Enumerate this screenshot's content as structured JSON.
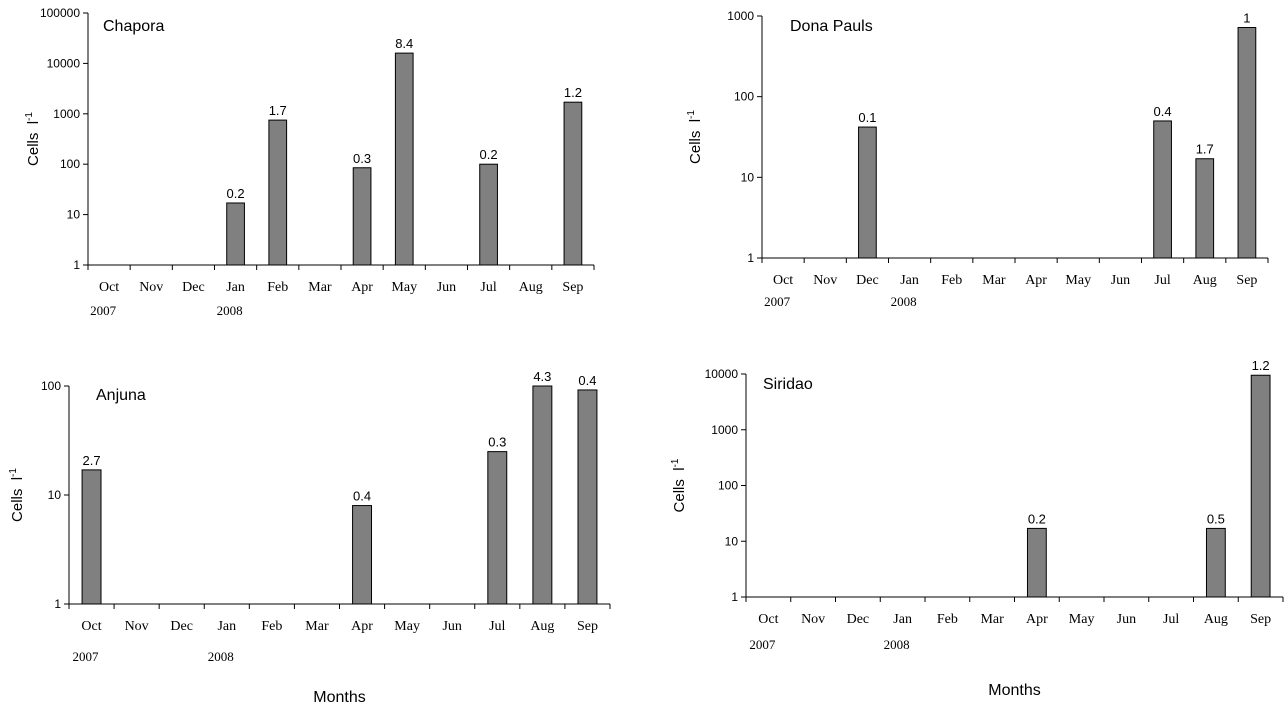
{
  "chart_data": [
    {
      "type": "bar",
      "title": "Chapora",
      "ylabel": "Cells",
      "yscale": "log",
      "ylim": [
        1,
        100000
      ],
      "yticks": [
        "1",
        "10",
        "100",
        "1000",
        "10000",
        "100000"
      ],
      "categories": [
        "Oct",
        "Nov",
        "Dec",
        "Jan",
        "Feb",
        "Mar",
        "Apr",
        "May",
        "Jun",
        "Jul",
        "Aug",
        "Sep"
      ],
      "year_labels": [
        "2007",
        "",
        "",
        "2008",
        "",
        "",
        "",
        "",
        "",
        "",
        "",
        ""
      ],
      "values": [
        null,
        null,
        null,
        17,
        750,
        null,
        85,
        16000,
        null,
        100,
        null,
        1700
      ],
      "data_labels": [
        "",
        "",
        "",
        "0.2",
        "1.7",
        "",
        "0.3",
        "8.4",
        "",
        "0.2",
        "",
        "1.2"
      ],
      "xlabel": "",
      "bar_color": "#808080"
    },
    {
      "type": "bar",
      "title": "Dona Pauls",
      "ylabel": "Cells",
      "yscale": "log",
      "ylim": [
        1,
        1000
      ],
      "yticks": [
        "1",
        "10",
        "100",
        "1000"
      ],
      "categories": [
        "Oct",
        "Nov",
        "Dec",
        "Jan",
        "Feb",
        "Mar",
        "Apr",
        "May",
        "Jun",
        "Jul",
        "Aug",
        "Sep"
      ],
      "year_labels": [
        "2007",
        "",
        "",
        "2008",
        "",
        "",
        "",
        "",
        "",
        "",
        "",
        ""
      ],
      "values": [
        null,
        null,
        42,
        null,
        null,
        null,
        null,
        null,
        null,
        50,
        17,
        720
      ],
      "data_labels": [
        "",
        "",
        "0.1",
        "",
        "",
        "",
        "",
        "",
        "",
        "0.4",
        "1.7",
        "1"
      ],
      "xlabel": "",
      "bar_color": "#808080"
    },
    {
      "type": "bar",
      "title": "Anjuna",
      "ylabel": "Cells",
      "yscale": "log",
      "ylim": [
        1,
        100
      ],
      "yticks": [
        "1",
        "10",
        "100"
      ],
      "categories": [
        "Oct",
        "Nov",
        "Dec",
        "Jan",
        "Feb",
        "Mar",
        "Apr",
        "May",
        "Jun",
        "Jul",
        "Aug",
        "Sep"
      ],
      "year_labels": [
        "2007",
        "",
        "",
        "2008",
        "",
        "",
        "",
        "",
        "",
        "",
        "",
        ""
      ],
      "values": [
        17,
        null,
        null,
        null,
        null,
        null,
        8,
        null,
        null,
        25,
        100,
        92
      ],
      "data_labels": [
        "2.7",
        "",
        "",
        "",
        "",
        "",
        "0.4",
        "",
        "",
        "0.3",
        "4.3",
        "0.4"
      ],
      "xlabel": "Months",
      "bar_color": "#808080"
    },
    {
      "type": "bar",
      "title": "Siridao",
      "ylabel": "Cells",
      "yscale": "log",
      "ylim": [
        1,
        10000
      ],
      "yticks": [
        "1",
        "10",
        "100",
        "1000",
        "10000"
      ],
      "categories": [
        "Oct",
        "Nov",
        "Dec",
        "Jan",
        "Feb",
        "Mar",
        "Apr",
        "May",
        "Jun",
        "Jul",
        "Aug",
        "Sep"
      ],
      "year_labels": [
        "2007",
        "",
        "",
        "2008",
        "",
        "",
        "",
        "",
        "",
        "",
        "",
        ""
      ],
      "values": [
        null,
        null,
        null,
        null,
        null,
        null,
        17,
        null,
        null,
        null,
        17,
        9500
      ],
      "data_labels": [
        "",
        "",
        "",
        "",
        "",
        "",
        "0.2",
        "",
        "",
        "",
        "0.5",
        "1.2"
      ],
      "xlabel": "Months",
      "bar_color": "#808080"
    }
  ]
}
